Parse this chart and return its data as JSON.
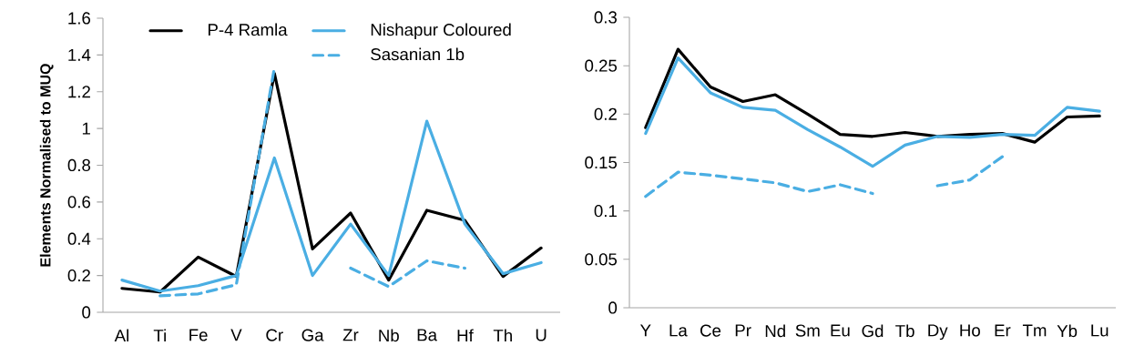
{
  "chart_data": [
    {
      "type": "line",
      "ylabel": "Elements Normalised to MUQ",
      "categories": [
        "Al",
        "Ti",
        "Fe",
        "V",
        "Cr",
        "Ga",
        "Zr",
        "Nb",
        "Ba",
        "Hf",
        "Th",
        "U"
      ],
      "series": [
        {
          "name": "P-4 Ramla",
          "color": "#000000",
          "line_style": "solid",
          "values": [
            0.13,
            0.11,
            0.3,
            0.195,
            1.3,
            0.345,
            0.54,
            0.175,
            0.555,
            0.5,
            0.195,
            0.35
          ]
        },
        {
          "name": "Nishapur Coloured",
          "color": "#4aaee3",
          "line_style": "solid",
          "values": [
            0.175,
            0.115,
            0.145,
            0.2,
            0.84,
            0.2,
            0.48,
            0.2,
            1.04,
            0.48,
            0.21,
            0.27
          ]
        },
        {
          "name": "Sasanian 1b",
          "color": "#4aaee3",
          "line_style": "dashed",
          "values": [
            null,
            0.09,
            0.1,
            0.15,
            1.33,
            null,
            0.24,
            0.14,
            0.28,
            0.24,
            null,
            null
          ]
        }
      ],
      "ylim": [
        0,
        1.6
      ],
      "yticks": [
        0,
        0.2,
        0.4,
        0.6,
        0.8,
        1,
        1.2,
        1.4,
        1.6
      ],
      "legend": "top"
    },
    {
      "type": "line",
      "categories": [
        "Y",
        "La",
        "Ce",
        "Pr",
        "Nd",
        "Sm",
        "Eu",
        "Gd",
        "Tb",
        "Dy",
        "Ho",
        "Er",
        "Tm",
        "Yb",
        "Lu"
      ],
      "series": [
        {
          "color": "#000000",
          "line_style": "solid",
          "values": [
            0.186,
            0.267,
            0.228,
            0.213,
            0.22,
            0.2,
            0.179,
            0.177,
            0.181,
            0.177,
            0.179,
            0.18,
            0.171,
            0.197,
            0.198
          ]
        },
        {
          "color": "#4aaee3",
          "line_style": "solid",
          "values": [
            0.18,
            0.258,
            0.222,
            0.207,
            0.204,
            0.184,
            0.166,
            0.146,
            0.168,
            0.177,
            0.176,
            0.179,
            0.178,
            0.207,
            0.203
          ]
        },
        {
          "color": "#4aaee3",
          "line_style": "dashed",
          "values": [
            0.115,
            0.14,
            0.137,
            0.133,
            0.129,
            0.12,
            0.127,
            0.118,
            null,
            0.126,
            0.132,
            0.156,
            null,
            null,
            null
          ]
        }
      ],
      "ylim": [
        0,
        0.3
      ],
      "yticks": [
        0,
        0.05,
        0.1,
        0.15,
        0.2,
        0.25,
        0.3
      ]
    }
  ]
}
